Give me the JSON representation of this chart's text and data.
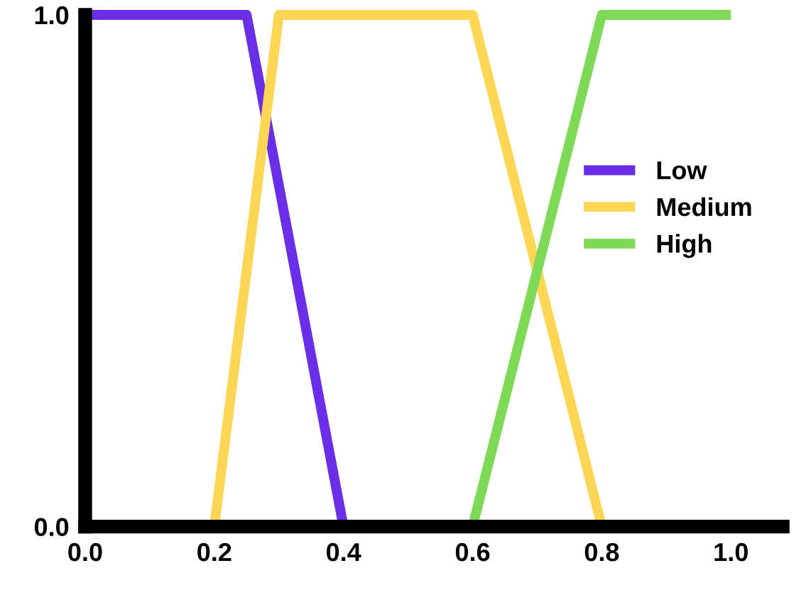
{
  "chart_data": {
    "type": "line",
    "series": [
      {
        "name": "Low",
        "color": "#6a2ee8",
        "x": [
          0.0,
          0.25,
          0.4
        ],
        "values": [
          1,
          1,
          0
        ]
      },
      {
        "name": "Medium",
        "color": "#fdd655",
        "x": [
          0.2,
          0.3,
          0.6,
          0.8
        ],
        "values": [
          0,
          1,
          1,
          0
        ]
      },
      {
        "name": "High",
        "color": "#7ed957",
        "x": [
          0.6,
          0.8,
          1.0
        ],
        "values": [
          0,
          1,
          1
        ]
      }
    ],
    "xlim": [
      0.0,
      1.08
    ],
    "ylim": [
      0.0,
      1.0
    ],
    "xticks": [
      {
        "value": 0.0,
        "label": "0.0"
      },
      0.2,
      0.4,
      0.6,
      0.8,
      {
        "value": 1.0,
        "label": "1.0"
      }
    ],
    "yticks": [
      {
        "value": 0.0,
        "label": "0.0"
      },
      {
        "value": 1.0,
        "label": "1.0"
      }
    ],
    "grid": false,
    "legend": "right",
    "marker": "none",
    "line_style": "solid"
  }
}
